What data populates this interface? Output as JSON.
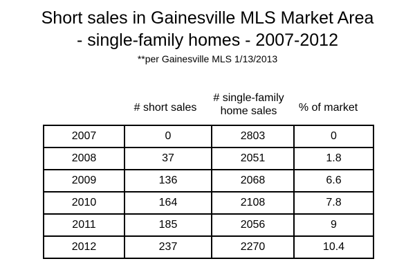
{
  "title_line1": "Short sales in Gainesville MLS Market Area",
  "title_line2": "- single-family homes - 2007-2012",
  "subtitle": "**per Gainesville MLS 1/13/2013",
  "headers": {
    "short_sales": "# short sales",
    "home_sales_line1": "# single-family",
    "home_sales_line2": "home sales",
    "pct_market": "% of market"
  },
  "rows": [
    {
      "year": "2007",
      "short_sales": "0",
      "home_sales": "2803",
      "pct": "0"
    },
    {
      "year": "2008",
      "short_sales": "37",
      "home_sales": "2051",
      "pct": "1.8"
    },
    {
      "year": "2009",
      "short_sales": "136",
      "home_sales": "2068",
      "pct": "6.6"
    },
    {
      "year": "2010",
      "short_sales": "164",
      "home_sales": "2108",
      "pct": "7.8"
    },
    {
      "year": "2011",
      "short_sales": "185",
      "home_sales": "2056",
      "pct": "9"
    },
    {
      "year": "2012",
      "short_sales": "237",
      "home_sales": "2270",
      "pct": "10.4"
    }
  ]
}
